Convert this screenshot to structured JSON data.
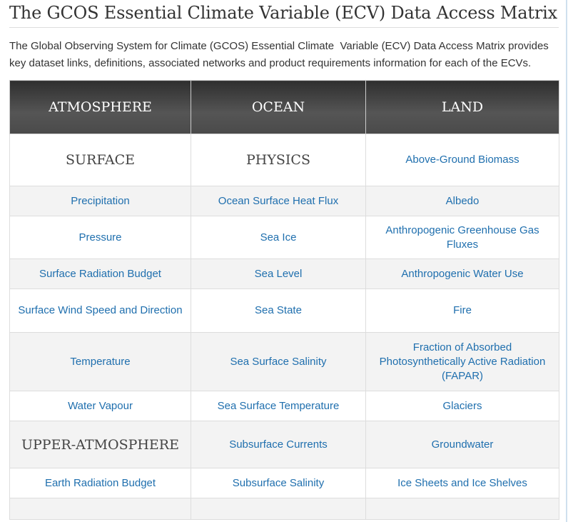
{
  "header": {
    "title": "The GCOS Essential Climate Variable (ECV) Data Access Matrix"
  },
  "intro": "The Global Observing System for Climate (GCOS) Essential Climate  Variable (ECV) Data Access Matrix provides key dataset links, definitions, associated networks and product requirements information for each of the ECVs.",
  "table": {
    "columns": [
      "ATMOSPHERE",
      "OCEAN",
      "LAND"
    ],
    "rows": [
      [
        "SURFACE",
        "PHYSICS",
        "Above-Ground Biomass"
      ],
      [
        "Precipitation",
        "Ocean Surface Heat Flux",
        "Albedo"
      ],
      [
        "Pressure",
        "Sea Ice",
        "Anthropogenic Greenhouse Gas Fluxes"
      ],
      [
        "Surface Radiation Budget",
        "Sea Level",
        "Anthropogenic Water Use"
      ],
      [
        "Surface Wind Speed and Direction",
        "Sea State",
        "Fire"
      ],
      [
        "Temperature",
        "Sea Surface Salinity",
        "Fraction of Absorbed Photosynthetically Active Radiation (FAPAR)"
      ],
      [
        "Water Vapour",
        "Sea Surface Temperature",
        "Glaciers"
      ],
      [
        "UPPER-ATMOSPHERE",
        "Subsurface Currents",
        "Groundwater"
      ],
      [
        "Earth Radiation Budget",
        "Subsurface Salinity",
        "Ice Sheets and Ice Shelves"
      ]
    ]
  }
}
